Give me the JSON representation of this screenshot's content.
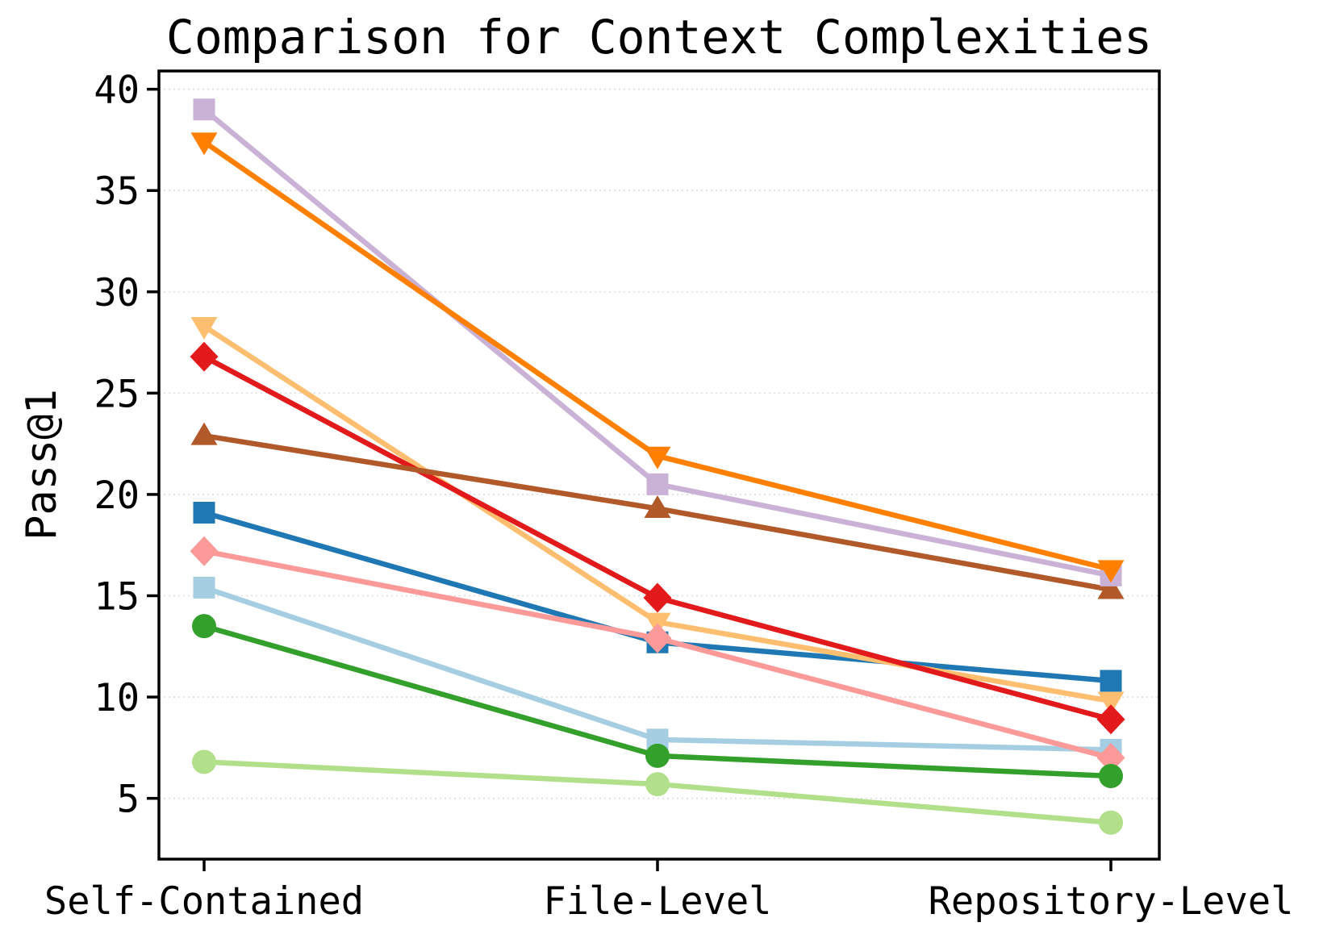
{
  "chart": {
    "title": "Comparison for Context Complexities",
    "ylabel": "Pass@1"
  },
  "chart_data": {
    "type": "line",
    "title": "Comparison for Context Complexities",
    "xlabel": "",
    "ylabel": "Pass@1",
    "categories": [
      "Self-Contained",
      "File-Level",
      "Repository-Level"
    ],
    "series": [
      {
        "name": "light-blue-square",
        "marker": "square",
        "color": "#a6cee3",
        "values": [
          15.4,
          7.9,
          7.4
        ]
      },
      {
        "name": "blue-square",
        "marker": "square",
        "color": "#1f78b4",
        "values": [
          19.1,
          12.7,
          10.8
        ]
      },
      {
        "name": "sandy-triangle-down",
        "marker": "triangle-down",
        "color": "#fdbf6f",
        "values": [
          28.3,
          13.7,
          9.8
        ]
      },
      {
        "name": "pink-diamond",
        "marker": "diamond",
        "color": "#fb9a99",
        "values": [
          17.2,
          12.9,
          7.0
        ]
      },
      {
        "name": "light-green-circle",
        "marker": "circle",
        "color": "#b2df8a",
        "values": [
          6.8,
          5.7,
          3.8
        ]
      },
      {
        "name": "green-circle",
        "marker": "circle",
        "color": "#33a02c",
        "values": [
          13.5,
          7.1,
          6.1
        ]
      },
      {
        "name": "red-diamond",
        "marker": "diamond",
        "color": "#e31a1c",
        "values": [
          26.8,
          14.9,
          8.9
        ]
      },
      {
        "name": "brown-triangle-up",
        "marker": "triangle-up",
        "color": "#b15928",
        "values": [
          22.9,
          19.3,
          15.3
        ]
      },
      {
        "name": "lavender-square",
        "marker": "square",
        "color": "#cab2d6",
        "values": [
          39.0,
          20.5,
          16.0
        ]
      },
      {
        "name": "orange-triangle-down",
        "marker": "triangle-down",
        "color": "#ff7f00",
        "values": [
          37.4,
          21.9,
          16.3
        ]
      }
    ],
    "yticks": [
      5,
      10,
      15,
      20,
      25,
      30,
      35,
      40
    ],
    "ylim": [
      2.0,
      40.9
    ],
    "grid": true,
    "legend": "none",
    "axis_color": "#000000",
    "grid_color": "#dcdcdc"
  }
}
